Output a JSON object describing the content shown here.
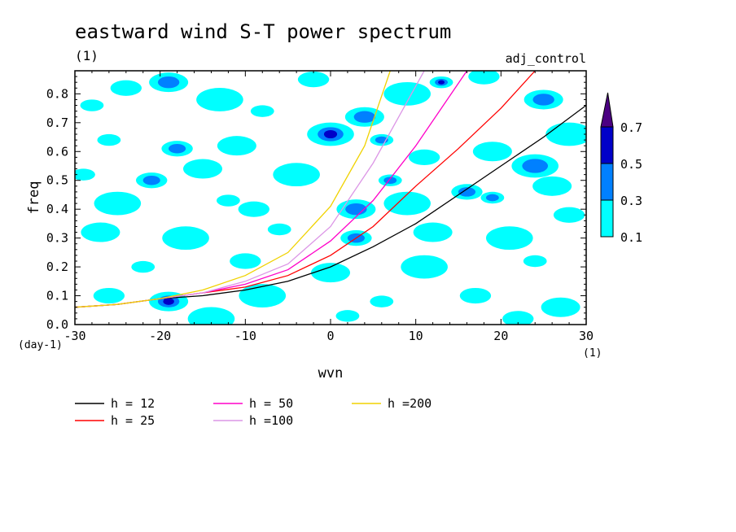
{
  "chart_data": {
    "type": "contour",
    "title": "eastward wind S-T power spectrum",
    "title_units": "(1)",
    "run_label": "adj_control",
    "xlabel": "wvn",
    "x_units": "(1)",
    "ylabel": "freq",
    "y_units": "(day-1)",
    "xlim": [
      -30,
      30
    ],
    "ylim": [
      0,
      0.88
    ],
    "x_ticks": [
      -30,
      -20,
      -10,
      0,
      10,
      20,
      30
    ],
    "x_tick_labels": [
      "-30",
      "-20",
      "-10",
      "0",
      "10",
      "20",
      "30"
    ],
    "y_ticks": [
      0,
      0.1,
      0.2,
      0.3,
      0.4,
      0.5,
      0.6,
      0.7,
      0.8
    ],
    "y_tick_labels": [
      "0.0",
      "0.1",
      "0.2",
      "0.3",
      "0.4",
      "0.5",
      "0.6",
      "0.7",
      "0.8"
    ],
    "colorbar": {
      "levels": [
        0.1,
        0.3,
        0.5,
        0.7
      ],
      "level_labels": [
        "0.1",
        "0.3",
        "0.5",
        "0.7"
      ],
      "colors": [
        "#00ffff",
        "#0080ff",
        "#0000c8",
        "#4b0082"
      ]
    },
    "contour_fields": [
      {
        "x": -28,
        "y": 0.76,
        "level": 1
      },
      {
        "x": -24,
        "y": 0.82,
        "level": 1
      },
      {
        "x": -19,
        "y": 0.84,
        "level": 2
      },
      {
        "x": -13,
        "y": 0.78,
        "level": 1
      },
      {
        "x": -8,
        "y": 0.74,
        "level": 1
      },
      {
        "x": -2,
        "y": 0.85,
        "level": 1
      },
      {
        "x": 4,
        "y": 0.72,
        "level": 2
      },
      {
        "x": 9,
        "y": 0.8,
        "level": 1
      },
      {
        "x": 13,
        "y": 0.84,
        "level": 3
      },
      {
        "x": 18,
        "y": 0.86,
        "level": 1
      },
      {
        "x": 25,
        "y": 0.78,
        "level": 2
      },
      {
        "x": 28,
        "y": 0.66,
        "level": 1
      },
      {
        "x": -26,
        "y": 0.64,
        "level": 1
      },
      {
        "x": -18,
        "y": 0.61,
        "level": 2
      },
      {
        "x": -11,
        "y": 0.62,
        "level": 1
      },
      {
        "x": 0,
        "y": 0.66,
        "level": 3
      },
      {
        "x": 6,
        "y": 0.64,
        "level": 2
      },
      {
        "x": 11,
        "y": 0.58,
        "level": 1
      },
      {
        "x": 19,
        "y": 0.6,
        "level": 1
      },
      {
        "x": 24,
        "y": 0.55,
        "level": 2
      },
      {
        "x": -29,
        "y": 0.52,
        "level": 1
      },
      {
        "x": -21,
        "y": 0.5,
        "level": 2
      },
      {
        "x": -15,
        "y": 0.54,
        "level": 1
      },
      {
        "x": -4,
        "y": 0.52,
        "level": 1
      },
      {
        "x": 7,
        "y": 0.5,
        "level": 2
      },
      {
        "x": 16,
        "y": 0.46,
        "level": 2
      },
      {
        "x": 26,
        "y": 0.48,
        "level": 1
      },
      {
        "x": -25,
        "y": 0.42,
        "level": 1
      },
      {
        "x": -12,
        "y": 0.43,
        "level": 1
      },
      {
        "x": -9,
        "y": 0.4,
        "level": 1
      },
      {
        "x": 3,
        "y": 0.4,
        "level": 2
      },
      {
        "x": 9,
        "y": 0.42,
        "level": 1
      },
      {
        "x": 19,
        "y": 0.44,
        "level": 2
      },
      {
        "x": 28,
        "y": 0.38,
        "level": 1
      },
      {
        "x": -27,
        "y": 0.32,
        "level": 1
      },
      {
        "x": -17,
        "y": 0.3,
        "level": 1
      },
      {
        "x": -6,
        "y": 0.33,
        "level": 1
      },
      {
        "x": 3,
        "y": 0.3,
        "level": 2
      },
      {
        "x": 12,
        "y": 0.32,
        "level": 1
      },
      {
        "x": 21,
        "y": 0.3,
        "level": 1
      },
      {
        "x": -22,
        "y": 0.2,
        "level": 1
      },
      {
        "x": -10,
        "y": 0.22,
        "level": 1
      },
      {
        "x": 0,
        "y": 0.18,
        "level": 1
      },
      {
        "x": 11,
        "y": 0.2,
        "level": 1
      },
      {
        "x": 24,
        "y": 0.22,
        "level": 1
      },
      {
        "x": -26,
        "y": 0.1,
        "level": 1
      },
      {
        "x": -19,
        "y": 0.08,
        "level": 3
      },
      {
        "x": -8,
        "y": 0.1,
        "level": 1
      },
      {
        "x": 6,
        "y": 0.08,
        "level": 1
      },
      {
        "x": 17,
        "y": 0.1,
        "level": 1
      },
      {
        "x": 27,
        "y": 0.06,
        "level": 1
      },
      {
        "x": -14,
        "y": 0.02,
        "level": 1
      },
      {
        "x": 2,
        "y": 0.03,
        "level": 1
      },
      {
        "x": 22,
        "y": 0.02,
        "level": 1
      }
    ],
    "series": [
      {
        "name": "h = 12",
        "color": "#000000",
        "x": [
          -30,
          -25,
          -20,
          -15,
          -10,
          -5,
          0,
          5,
          10,
          15,
          20,
          25,
          30
        ],
        "y": [
          0.06,
          0.07,
          0.09,
          0.1,
          0.12,
          0.15,
          0.2,
          0.27,
          0.35,
          0.45,
          0.55,
          0.65,
          0.76
        ]
      },
      {
        "name": "h = 25",
        "color": "#ff0000",
        "x": [
          -30,
          -25,
          -20,
          -15,
          -10,
          -5,
          0,
          5,
          10,
          15,
          20,
          24
        ],
        "y": [
          0.06,
          0.07,
          0.09,
          0.11,
          0.13,
          0.17,
          0.24,
          0.34,
          0.48,
          0.61,
          0.75,
          0.88
        ]
      },
      {
        "name": "h = 50",
        "color": "#ff00c8",
        "x": [
          -30,
          -25,
          -20,
          -15,
          -10,
          -5,
          0,
          5,
          10,
          16
        ],
        "y": [
          0.06,
          0.07,
          0.09,
          0.11,
          0.14,
          0.19,
          0.29,
          0.43,
          0.62,
          0.88
        ]
      },
      {
        "name": "h =100",
        "color": "#dc96e6",
        "x": [
          -30,
          -25,
          -20,
          -15,
          -10,
          -5,
          0,
          5,
          11
        ],
        "y": [
          0.06,
          0.07,
          0.09,
          0.11,
          0.15,
          0.21,
          0.34,
          0.56,
          0.88
        ]
      },
      {
        "name": "h =200",
        "color": "#f0d200",
        "x": [
          -30,
          -25,
          -20,
          -15,
          -10,
          -5,
          0,
          4,
          7
        ],
        "y": [
          0.06,
          0.07,
          0.09,
          0.12,
          0.17,
          0.25,
          0.41,
          0.62,
          0.88
        ]
      }
    ]
  }
}
